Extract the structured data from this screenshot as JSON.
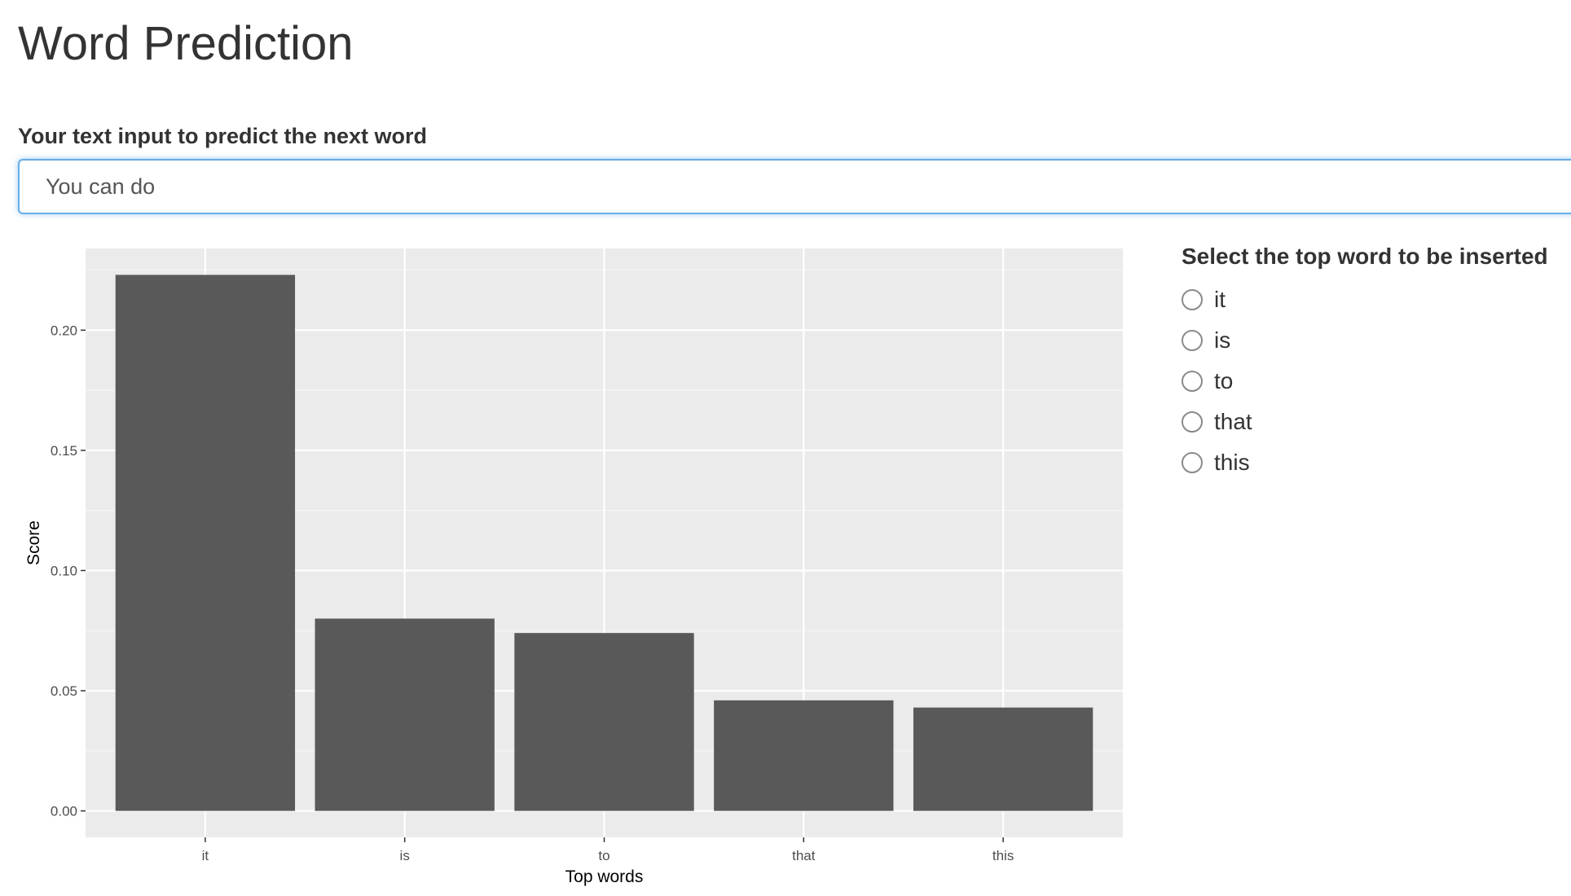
{
  "page": {
    "title": "Word Prediction"
  },
  "input": {
    "label": "Your text input to predict the next word",
    "value": "You can do"
  },
  "radio": {
    "title": "Select the top word to be inserted",
    "options": [
      "it",
      "is",
      "to",
      "that",
      "this"
    ],
    "selected": null
  },
  "chart_data": {
    "type": "bar",
    "categories": [
      "it",
      "is",
      "to",
      "that",
      "this"
    ],
    "values": [
      0.223,
      0.08,
      0.074,
      0.046,
      0.043
    ],
    "xlabel": "Top words",
    "ylabel": "Score",
    "ylim": [
      -0.011,
      0.234
    ],
    "yticks": [
      0.0,
      0.05,
      0.1,
      0.15,
      0.2
    ],
    "ytick_labels": [
      "0.00",
      "0.05",
      "0.10",
      "0.15",
      "0.20"
    ],
    "grid": true,
    "colors": {
      "bar": "#595959",
      "panel": "#ebebeb",
      "grid_major": "#ffffff",
      "grid_minor": "#f5f5f5",
      "text": "#4d4d4d"
    }
  }
}
